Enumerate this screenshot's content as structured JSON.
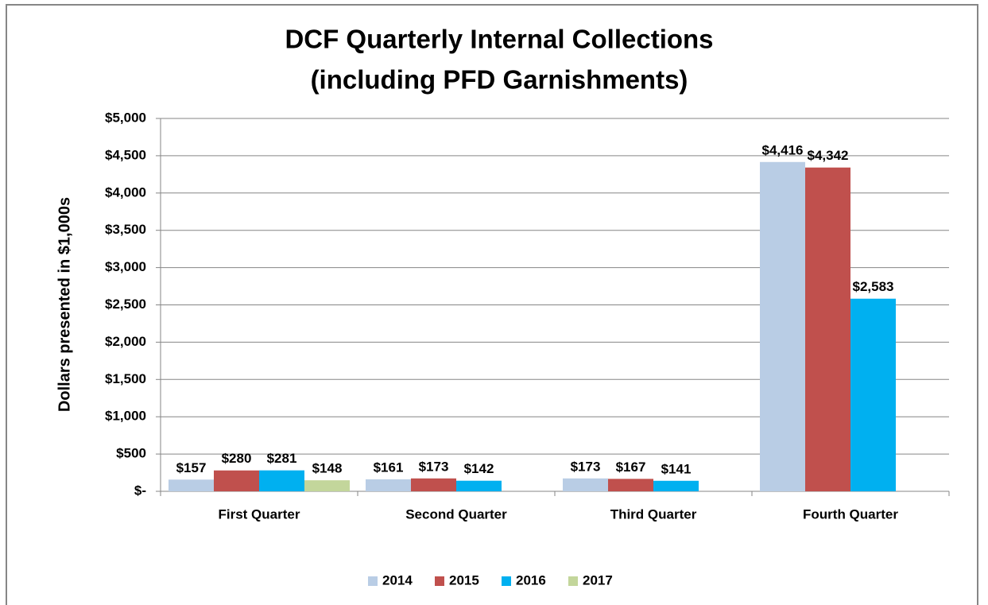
{
  "chart_data": {
    "type": "bar",
    "title": "DCF Quarterly Internal Collections",
    "subtitle": "(including PFD Garnishments)",
    "y_label": "Dollars presented in $1,000s",
    "categories": [
      "First Quarter",
      "Second Quarter",
      "Third Quarter",
      "Fourth Quarter"
    ],
    "series": [
      {
        "name": "2014",
        "color": "#b9cde5",
        "values": [
          157,
          161,
          173,
          4416
        ],
        "value_labels": [
          "$157",
          "$161",
          "$173",
          "$4,416"
        ]
      },
      {
        "name": "2015",
        "color": "#c0504d",
        "values": [
          280,
          173,
          167,
          4342
        ],
        "value_labels": [
          "$280",
          "$173",
          "$167",
          "$4,342"
        ]
      },
      {
        "name": "2016",
        "color": "#00b0f0",
        "values": [
          281,
          142,
          141,
          2583
        ],
        "value_labels": [
          "$281",
          "$142",
          "$141",
          "$2,583"
        ]
      },
      {
        "name": "2017",
        "color": "#c3d69b",
        "values": [
          148,
          null,
          null,
          null
        ],
        "value_labels": [
          "$148",
          null,
          null,
          null
        ]
      }
    ],
    "ylim": [
      0,
      5000
    ],
    "yticks": [
      {
        "value": 0,
        "label": "$-"
      },
      {
        "value": 500,
        "label": "$500"
      },
      {
        "value": 1000,
        "label": "$1,000"
      },
      {
        "value": 1500,
        "label": "$1,500"
      },
      {
        "value": 2000,
        "label": "$2,000"
      },
      {
        "value": 2500,
        "label": "$2,500"
      },
      {
        "value": 3000,
        "label": "$3,000"
      },
      {
        "value": 3500,
        "label": "$3,500"
      },
      {
        "value": 4000,
        "label": "$4,000"
      },
      {
        "value": 4500,
        "label": "$4,500"
      },
      {
        "value": 5000,
        "label": "$5,000"
      }
    ],
    "grid": true,
    "legend": "bottom"
  }
}
